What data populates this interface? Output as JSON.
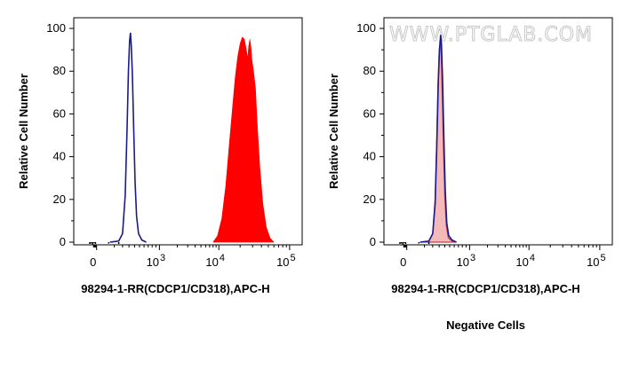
{
  "chart_data": [
    {
      "type": "area",
      "xscale": "biexponential",
      "xlabel": "98294-1-RR(CDCP1/CD318),APC-H",
      "ylabel": "Relative Cell Number",
      "ylim": [
        0,
        105
      ],
      "x_ticks": [
        {
          "value": 0,
          "label": "0"
        },
        {
          "value": 1000,
          "label": "10",
          "exp": "3"
        },
        {
          "value": 10000,
          "label": "10",
          "exp": "4"
        },
        {
          "value": 100000,
          "label": "10",
          "exp": "5"
        }
      ],
      "y_ticks": [
        0,
        20,
        40,
        60,
        80,
        100
      ],
      "caption": "",
      "series": [
        {
          "style": "outline",
          "color": "#1a1a8c",
          "points": [
            [
              60,
              0
            ],
            [
              150,
              0.5
            ],
            [
              200,
              4
            ],
            [
              240,
              22
            ],
            [
              270,
              55
            ],
            [
              290,
              80
            ],
            [
              310,
              94
            ],
            [
              325,
              98
            ],
            [
              340,
              92
            ],
            [
              360,
              78
            ],
            [
              385,
              52
            ],
            [
              410,
              28
            ],
            [
              440,
              12
            ],
            [
              480,
              4
            ],
            [
              550,
              1
            ],
            [
              650,
              0
            ]
          ]
        },
        {
          "style": "filled",
          "color": "#ff0000",
          "points": [
            [
              8000,
              0
            ],
            [
              9500,
              3
            ],
            [
              11000,
              11
            ],
            [
              12500,
              26
            ],
            [
              14000,
              45
            ],
            [
              15500,
              62
            ],
            [
              17000,
              77
            ],
            [
              18500,
              87
            ],
            [
              20000,
              93
            ],
            [
              21500,
              96
            ],
            [
              23000,
              95
            ],
            [
              24500,
              90
            ],
            [
              25500,
              86
            ],
            [
              26500,
              92
            ],
            [
              27500,
              95
            ],
            [
              28500,
              91
            ],
            [
              29500,
              85
            ],
            [
              31000,
              80
            ],
            [
              33000,
              72
            ],
            [
              35000,
              55
            ],
            [
              38000,
              35
            ],
            [
              42000,
              18
            ],
            [
              47000,
              7
            ],
            [
              53000,
              2
            ],
            [
              60000,
              0
            ]
          ]
        }
      ]
    },
    {
      "type": "area",
      "xscale": "biexponential",
      "xlabel": "98294-1-RR(CDCP1/CD318),APC-H",
      "ylabel": "Relative Cell Number",
      "ylim": [
        0,
        105
      ],
      "x_ticks": [
        {
          "value": 0,
          "label": "0"
        },
        {
          "value": 1000,
          "label": "10",
          "exp": "3"
        },
        {
          "value": 10000,
          "label": "10",
          "exp": "4"
        },
        {
          "value": 100000,
          "label": "10",
          "exp": "5"
        }
      ],
      "y_ticks": [
        0,
        20,
        40,
        60,
        80,
        100
      ],
      "caption": "Negative Cells",
      "watermark": "WWW.PTGLAB.COM",
      "series": [
        {
          "style": "filled",
          "color": "#f4b9b9",
          "stroke": "#c0404a",
          "points": [
            [
              60,
              0
            ],
            [
              150,
              0.5
            ],
            [
              200,
              4
            ],
            [
              235,
              20
            ],
            [
              260,
              48
            ],
            [
              280,
              74
            ],
            [
              300,
              89
            ],
            [
              320,
              94
            ],
            [
              335,
              88
            ],
            [
              350,
              72
            ],
            [
              375,
              45
            ],
            [
              400,
              22
            ],
            [
              430,
              8
            ],
            [
              470,
              2
            ],
            [
              550,
              0.5
            ],
            [
              650,
              0
            ]
          ]
        },
        {
          "style": "outline",
          "color": "#1a1a8c",
          "points": [
            [
              60,
              0
            ],
            [
              150,
              0.5
            ],
            [
              200,
              4
            ],
            [
              235,
              18
            ],
            [
              260,
              44
            ],
            [
              285,
              74
            ],
            [
              305,
              90
            ],
            [
              325,
              97
            ],
            [
              340,
              93
            ],
            [
              360,
              76
            ],
            [
              385,
              48
            ],
            [
              410,
              24
            ],
            [
              440,
              9
            ],
            [
              480,
              3
            ],
            [
              550,
              1
            ],
            [
              650,
              0
            ]
          ]
        }
      ]
    }
  ]
}
